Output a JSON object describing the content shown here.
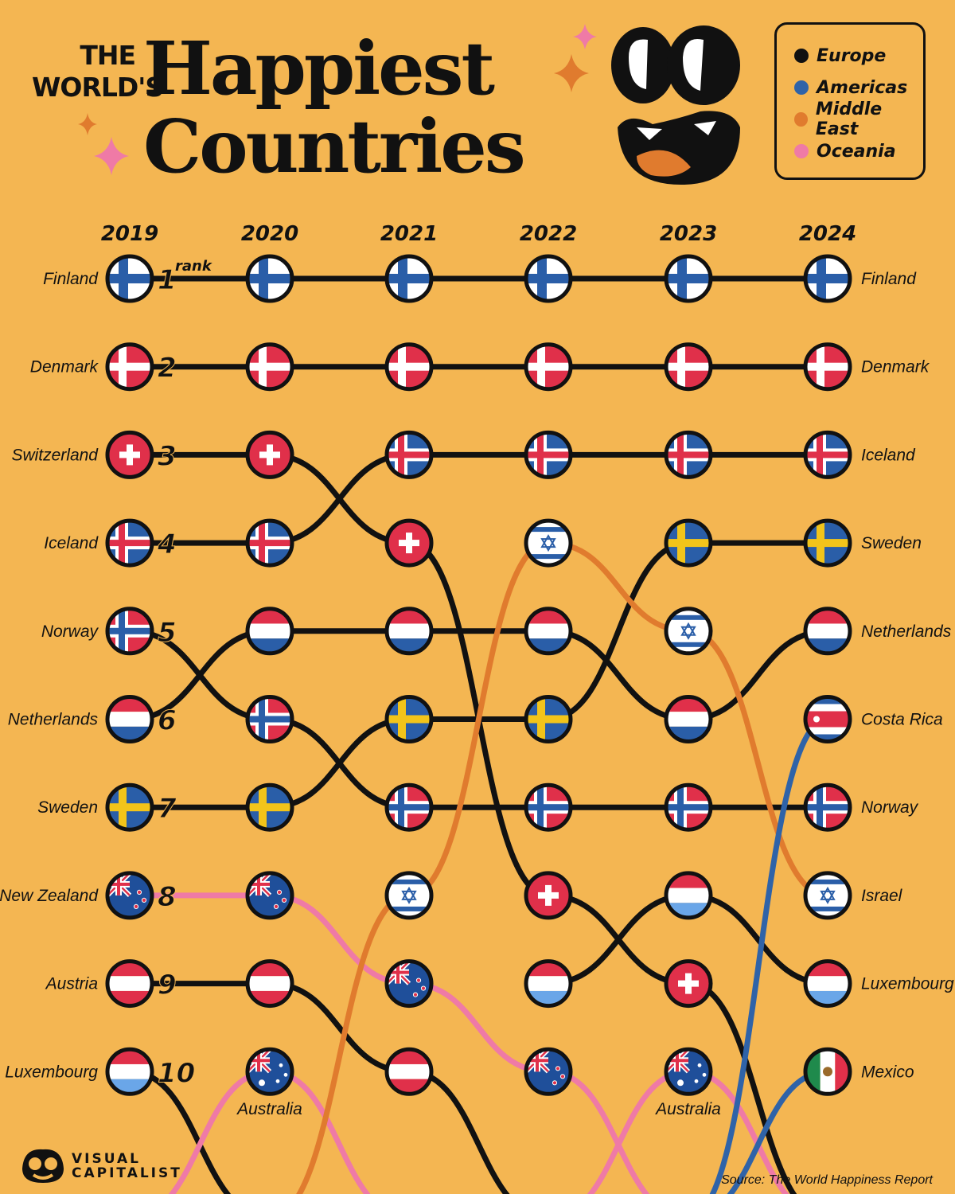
{
  "header": {
    "title_line1": "THE",
    "title_line2": "WORLD'S",
    "title_big1": "Happiest",
    "title_big2": "Countries"
  },
  "legend": [
    {
      "label": "Europe",
      "color": "#111111"
    },
    {
      "label": "Americas",
      "color": "#2f63a8"
    },
    {
      "label": "Middle East",
      "color": "#e07b2e"
    },
    {
      "label": "Oceania",
      "color": "#ef7aa6"
    }
  ],
  "footer": {
    "logo_line1": "VISUAL",
    "logo_line2": "CAPITALIST",
    "source": "Source: The World Happiness Report"
  },
  "chart_data": {
    "type": "bump",
    "years": [
      "2019",
      "2020",
      "2021",
      "2022",
      "2023",
      "2024"
    ],
    "rank_label": "rank",
    "rank_numbers": [
      "1",
      "2",
      "3",
      "4",
      "5",
      "6",
      "7",
      "8",
      "9",
      "10"
    ],
    "left_labels": [
      "Finland",
      "Denmark",
      "Switzerland",
      "Iceland",
      "Norway",
      "Netherlands",
      "Sweden",
      "New Zealand",
      "Austria",
      "Luxembourg"
    ],
    "right_labels": [
      "Finland",
      "Denmark",
      "Iceland",
      "Sweden",
      "Netherlands",
      "Costa Rica",
      "Norway",
      "Israel",
      "Luxembourg",
      "Mexico"
    ],
    "extra_labels": [
      {
        "text": "Australia",
        "year_index": 1
      },
      {
        "text": "Australia",
        "year_index": 4
      }
    ],
    "series": [
      {
        "name": "Finland",
        "region": "Europe",
        "flag": "finland",
        "ranks": [
          1,
          1,
          1,
          1,
          1,
          1
        ]
      },
      {
        "name": "Denmark",
        "region": "Europe",
        "flag": "denmark",
        "ranks": [
          2,
          2,
          2,
          2,
          2,
          2
        ]
      },
      {
        "name": "Switzerland",
        "region": "Europe",
        "flag": "switzerland",
        "ranks": [
          3,
          3,
          4,
          8,
          9,
          11
        ]
      },
      {
        "name": "Iceland",
        "region": "Europe",
        "flag": "iceland",
        "ranks": [
          4,
          4,
          3,
          3,
          3,
          3
        ]
      },
      {
        "name": "Norway",
        "region": "Europe",
        "flag": "norway",
        "ranks": [
          5,
          6,
          7,
          7,
          7,
          7
        ]
      },
      {
        "name": "Netherlands",
        "region": "Europe",
        "flag": "netherlands",
        "ranks": [
          6,
          5,
          5,
          5,
          6,
          5
        ]
      },
      {
        "name": "Sweden",
        "region": "Europe",
        "flag": "sweden",
        "ranks": [
          7,
          7,
          6,
          6,
          4,
          4
        ]
      },
      {
        "name": "New Zealand",
        "region": "Oceania",
        "flag": "newzealand",
        "ranks": [
          8,
          8,
          9,
          10,
          11,
          null
        ]
      },
      {
        "name": "Austria",
        "region": "Europe",
        "flag": "austria",
        "ranks": [
          9,
          9,
          10,
          11,
          null,
          null
        ]
      },
      {
        "name": "Luxembourg",
        "region": "Europe",
        "flag": "luxembourg",
        "ranks": [
          10,
          11,
          null,
          9,
          8,
          9
        ]
      },
      {
        "name": "Australia",
        "region": "Oceania",
        "flag": "australia",
        "ranks": [
          11,
          10,
          11,
          11,
          10,
          11
        ]
      },
      {
        "name": "Israel",
        "region": "Middle East",
        "flag": "israel",
        "ranks": [
          null,
          11,
          8,
          4,
          5,
          8
        ]
      },
      {
        "name": "Costa Rica",
        "region": "Americas",
        "flag": "costarica",
        "ranks": [
          null,
          null,
          null,
          null,
          11,
          6
        ]
      },
      {
        "name": "Mexico",
        "region": "Americas",
        "flag": "mexico",
        "ranks": [
          null,
          null,
          null,
          null,
          11,
          10
        ]
      }
    ]
  }
}
